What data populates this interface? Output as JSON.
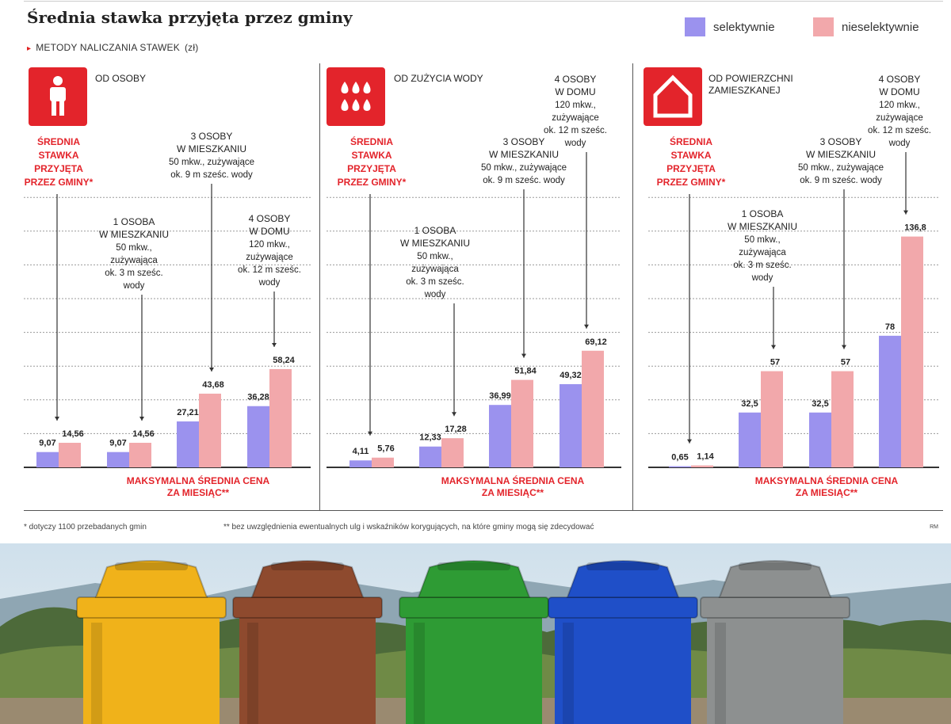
{
  "title": "Średnia stawka przyjęta przez gminy",
  "subtitle": "METODY NALICZANIA STAWEK",
  "unit": "(zł)",
  "legend": {
    "selective": {
      "label": "selektywnie",
      "color": "#9b92ee"
    },
    "nonselective": {
      "label": "nieselektywnie",
      "color": "#f2a8ab"
    }
  },
  "accent_color": "#e3242b",
  "chart_data": [
    {
      "type": "bar",
      "title": "OD OSOBY",
      "icon": "person-icon",
      "categories": [
        "ŚREDNIA STAWKA PRZYJĘTA PRZEZ GMINY*",
        "1 OSOBA W MIESZKANIU 50 mkw., zużywająca ok. 3 m sześc. wody",
        "3 OSOBY W MIESZKANIU 50 mkw., zużywające ok. 9 m sześc. wody",
        "4 OSOBY W DOMU 120 mkw., zużywające ok. 12 m sześc. wody"
      ],
      "series": [
        {
          "name": "selektywnie",
          "values": [
            9.07,
            9.07,
            27.21,
            36.28
          ]
        },
        {
          "name": "nieselektywnie",
          "values": [
            14.56,
            14.56,
            43.68,
            58.24
          ]
        }
      ],
      "value_labels": [
        [
          "9,07",
          "14,56"
        ],
        [
          "9,07",
          "14,56"
        ],
        [
          "27,21",
          "43,68"
        ],
        [
          "36,28",
          "58,24"
        ]
      ],
      "xlabel": "MAKSYMALNA ŚREDNIA CENA ZA MIESIĄC**",
      "ylim": [
        0,
        160
      ]
    },
    {
      "type": "bar",
      "title": "OD ZUŻYCIA WODY",
      "icon": "water-drops-icon",
      "categories": [
        "ŚREDNIA STAWKA PRZYJĘTA PRZEZ GMINY*",
        "1 OSOBA W MIESZKANIU 50 mkw., zużywająca ok. 3 m sześc. wody",
        "3 OSOBY W MIESZKANIU 50 mkw., zużywające ok. 9 m sześc. wody",
        "4 OSOBY W DOMU 120 mkw., zużywające ok. 12 m sześc. wody"
      ],
      "series": [
        {
          "name": "selektywnie",
          "values": [
            4.11,
            12.33,
            36.99,
            49.32
          ]
        },
        {
          "name": "nieselektywnie",
          "values": [
            5.76,
            17.28,
            51.84,
            69.12
          ]
        }
      ],
      "value_labels": [
        [
          "4,11",
          "5,76"
        ],
        [
          "12,33",
          "17,28"
        ],
        [
          "36,99",
          "51,84"
        ],
        [
          "49,32",
          "69,12"
        ]
      ],
      "xlabel": "MAKSYMALNA ŚREDNIA CENA ZA MIESIĄC**",
      "ylim": [
        0,
        160
      ]
    },
    {
      "type": "bar",
      "title": "OD POWIERZCHNI ZAMIESZKANEJ",
      "icon": "house-icon",
      "categories": [
        "ŚREDNIA STAWKA PRZYJĘTA PRZEZ GMINY*",
        "1 OSOBA W MIESZKANIU 50 mkw., zużywająca ok. 3 m sześc. wody",
        "3 OSOBY W MIESZKANIU 50 mkw., zużywające ok. 9 m sześc. wody",
        "4 OSOBY W DOMU 120 mkw., zużywające ok. 12 m sześc. wody"
      ],
      "series": [
        {
          "name": "selektywnie",
          "values": [
            0.65,
            32.5,
            32.5,
            78
          ]
        },
        {
          "name": "nieselektywnie",
          "values": [
            1.14,
            57,
            57,
            136.8
          ]
        }
      ],
      "value_labels": [
        [
          "0,65",
          "1,14"
        ],
        [
          "32,5",
          "57"
        ],
        [
          "32,5",
          "57"
        ],
        [
          "78",
          "136,8"
        ]
      ],
      "xlabel": "MAKSYMALNA ŚREDNIA CENA ZA MIESIĄC**",
      "ylim": [
        0,
        160
      ]
    }
  ],
  "annotation_text": {
    "avg_label": [
      "ŚREDNIA",
      "STAWKA",
      "PRZYJĘTA",
      "PRZEZ GMINY*"
    ],
    "one_person": [
      "1 OSOBA",
      "W MIESZKANIU",
      "50 mkw.,",
      "zużywająca",
      "ok. 3 m sześc.",
      "wody"
    ],
    "three_people": [
      "3 OSOBY",
      "W MIESZKANIU",
      "50 mkw., zużywające",
      "ok. 9 m sześc. wody"
    ],
    "four_people": [
      "4 OSOBY",
      "W DOMU",
      "120 mkw.,",
      "zużywające",
      "ok. 12 m sześc.",
      "wody"
    ],
    "max_price": [
      "MAKSYMALNA ŚREDNIA CENA",
      "ZA MIESIĄC**"
    ]
  },
  "footnotes": {
    "note1": "* dotyczy 1100 przebadanych gmin",
    "note2": "** bez uwzględnienia ewentualnych ulg i wskaźników korygujących, na które gminy mogą się zdecydować",
    "credit": "RM"
  },
  "photo": {
    "bins": [
      {
        "name": "yellow-bin",
        "color": "#f0b21a"
      },
      {
        "name": "brown-bin",
        "color": "#8e4a2e"
      },
      {
        "name": "green-bin",
        "color": "#2e9b34"
      },
      {
        "name": "blue-bin",
        "color": "#1f4fc8"
      },
      {
        "name": "gray-bin",
        "color": "#8d9090"
      }
    ]
  }
}
